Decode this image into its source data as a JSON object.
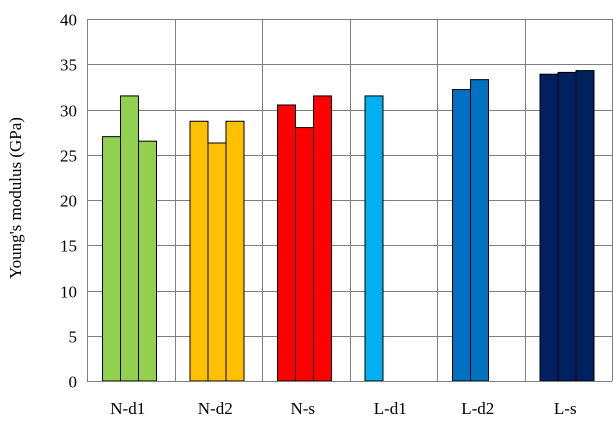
{
  "chart_data": {
    "type": "bar",
    "title": "",
    "xlabel": "",
    "ylabel": "Young's modulus (GPa)",
    "ylim": [
      0,
      40
    ],
    "yticks": [
      0,
      5,
      10,
      15,
      20,
      25,
      30,
      35,
      40
    ],
    "grid": true,
    "legend": "none",
    "groups": [
      {
        "label": "N-d1",
        "color": "#92d050",
        "values": [
          27.0,
          31.5,
          26.5
        ]
      },
      {
        "label": "N-d2",
        "color": "#ffc000",
        "values": [
          28.7,
          26.3,
          28.7
        ]
      },
      {
        "label": "N-s",
        "color": "#ff0000",
        "values": [
          30.5,
          28.0,
          31.5
        ]
      },
      {
        "label": "L-d1",
        "color": "#00b0f0",
        "values": [
          31.5
        ]
      },
      {
        "label": "L-d2",
        "color": "#0070c0",
        "values": [
          32.2,
          33.3
        ]
      },
      {
        "label": "L-s",
        "color": "#002060",
        "values": [
          33.9,
          34.1,
          34.3
        ]
      }
    ]
  }
}
